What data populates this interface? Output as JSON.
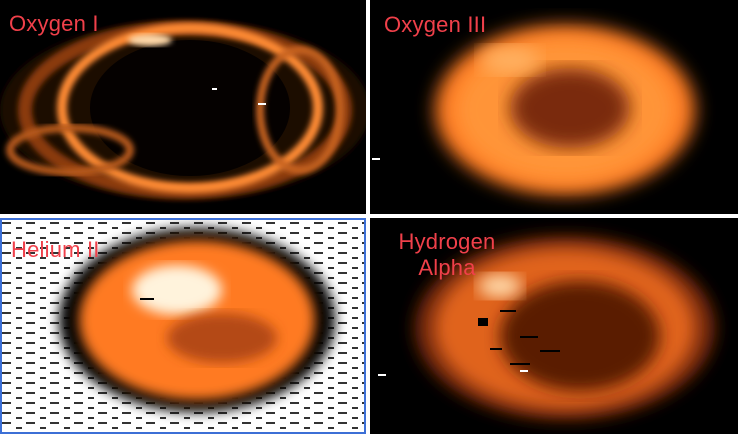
{
  "panels": [
    {
      "key": "oxygen1",
      "label": "Oxygen I"
    },
    {
      "key": "oxygen3",
      "label": "Oxygen III"
    },
    {
      "key": "helium2",
      "label": "Helium II"
    },
    {
      "key": "halpha",
      "label_line1": "Hydrogen",
      "label_line2": "Alpha"
    }
  ],
  "colors": {
    "label_text": "#f0404a",
    "panel_border": "#3c6fd6",
    "glow_core": "#ffe7c4",
    "glow_mid": "#ff8c2a",
    "glow_dim": "#6e2a08"
  }
}
